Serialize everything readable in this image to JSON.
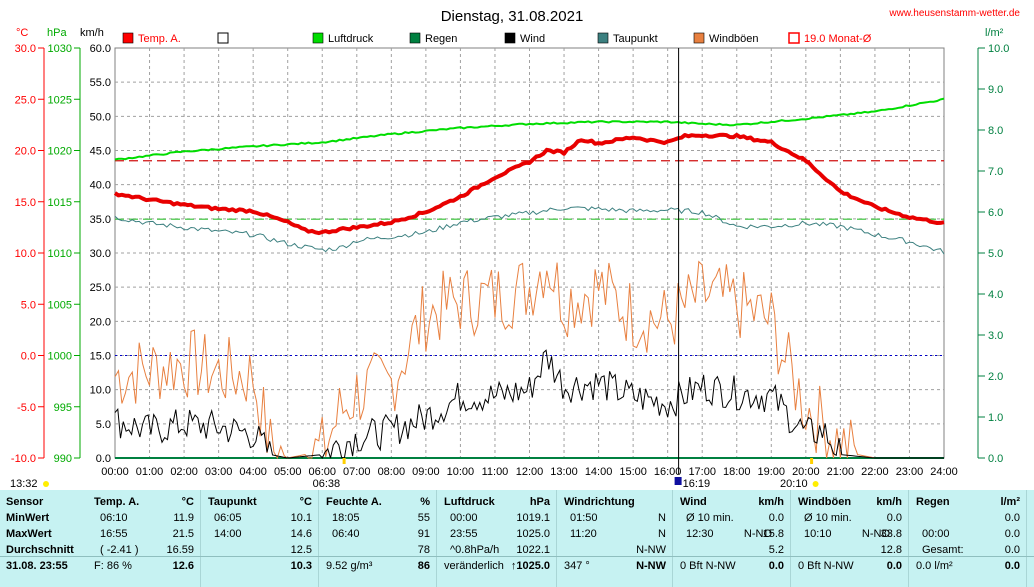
{
  "header": {
    "title": "Dienstag, 31.08.2021",
    "website": "www.heusenstamm-wetter.de",
    "unit_celsius": "°C",
    "unit_hpa": "hPa",
    "unit_kmh": "km/h",
    "unit_rain": "l/m²"
  },
  "legend": [
    {
      "label": "Temp. A.",
      "color": "#ff0000"
    },
    {
      "label": "",
      "color": "#ffffff"
    },
    {
      "label": "Luftdruck",
      "color": "#00dd00"
    },
    {
      "label": "Regen",
      "color": "#008040"
    },
    {
      "label": "Wind",
      "color": "#000000"
    },
    {
      "label": "Taupunkt",
      "color": "#3c8080"
    },
    {
      "label": "Windböen",
      "color": "#e88040"
    },
    {
      "label": "19.0 Monat-Ø",
      "color": "#ff0000"
    }
  ],
  "time_markers": {
    "left": "13:32",
    "sunrise": "06:38",
    "current": "16:19",
    "sunset": "20:10"
  },
  "chart_data": {
    "type": "line",
    "x_ticks": [
      "00:00",
      "01:00",
      "02:00",
      "03:00",
      "04:00",
      "05:00",
      "06:00",
      "07:00",
      "08:00",
      "09:00",
      "10:00",
      "11:00",
      "12:00",
      "13:00",
      "14:00",
      "15:00",
      "16:00",
      "17:00",
      "18:00",
      "19:00",
      "20:00",
      "21:00",
      "22:00",
      "23:00",
      "24:00"
    ],
    "axes": {
      "temp_c": {
        "ticks": [
          "30.0",
          "25.0",
          "20.0",
          "15.0",
          "10.0",
          "5.0",
          "0.0",
          "-5.0",
          "-10.0"
        ],
        "range": [
          -10,
          30
        ]
      },
      "pressure_hpa": {
        "ticks": [
          "1030",
          "1025",
          "1020",
          "1015",
          "1010",
          "1005",
          "1000",
          "995",
          "990"
        ],
        "range": [
          990,
          1030
        ]
      },
      "wind_kmh": {
        "ticks": [
          "60.0",
          "55.0",
          "50.0",
          "45.0",
          "40.0",
          "35.0",
          "30.0",
          "25.0",
          "20.0",
          "15.0",
          "10.0",
          "5.0",
          "0.0"
        ],
        "range": [
          0,
          60
        ]
      },
      "rain_lm2": {
        "ticks": [
          "10.0",
          "9.0",
          "8.0",
          "7.0",
          "6.0",
          "5.0",
          "4.0",
          "3.0",
          "2.0",
          "1.0",
          "0.0"
        ],
        "range": [
          0,
          10
        ]
      }
    },
    "reference_lines": {
      "temp_month_avg": 19.0,
      "dewpoint_ref": 13.3,
      "freeze_line": 0.0
    },
    "series": [
      {
        "name": "Temp. A.",
        "unit": "°C",
        "axis": "temp",
        "x": [
          0,
          1,
          2,
          3,
          4,
          5,
          5.5,
          6,
          6.5,
          7,
          8,
          9,
          10,
          11,
          12,
          12.5,
          13,
          13.5,
          14,
          15,
          15.5,
          16,
          16.5,
          17,
          18,
          19,
          20,
          21,
          22,
          23,
          24
        ],
        "y": [
          15.8,
          15.2,
          14.7,
          14.3,
          14.1,
          13.0,
          12.2,
          12.0,
          12.3,
          12.5,
          13.0,
          14.0,
          15.5,
          17.4,
          18.9,
          20.0,
          19.8,
          21.1,
          20.7,
          21.3,
          21.0,
          20.8,
          21.4,
          21.5,
          21.4,
          20.8,
          19.0,
          16.0,
          14.5,
          13.5,
          12.9
        ]
      },
      {
        "name": "Luftdruck",
        "unit": "hPa",
        "axis": "pressure",
        "x": [
          0,
          2,
          4,
          6,
          8,
          10,
          12,
          14,
          16,
          17,
          18,
          20,
          22,
          23,
          24
        ],
        "y": [
          1019.1,
          1019.9,
          1020.4,
          1020.8,
          1021.6,
          1022.2,
          1022.6,
          1022.8,
          1022.8,
          1022.6,
          1022.5,
          1023.1,
          1023.8,
          1024.4,
          1025.0
        ]
      },
      {
        "name": "Taupunkt",
        "unit": "°C",
        "axis": "temp",
        "x": [
          0,
          1,
          2,
          3,
          4,
          5,
          6,
          6.5,
          7,
          8,
          9,
          10,
          11,
          12,
          13,
          14,
          15,
          16,
          17,
          18,
          19,
          20,
          21,
          22,
          23,
          24
        ],
        "y": [
          13.5,
          12.9,
          12.5,
          12.1,
          11.8,
          10.9,
          10.3,
          10.5,
          11.2,
          11.6,
          12.0,
          13.0,
          13.5,
          13.9,
          14.4,
          14.3,
          14.1,
          14.2,
          14.0,
          12.6,
          12.6,
          12.9,
          12.6,
          11.8,
          11.1,
          10.1
        ]
      },
      {
        "name": "Wind",
        "unit": "km/h",
        "axis": "wind",
        "x": [
          0,
          1,
          2,
          3,
          4,
          4.5,
          5,
          6,
          6.5,
          7,
          8,
          9,
          10,
          11,
          12,
          12.5,
          13,
          14,
          15,
          16,
          17,
          18,
          19,
          20,
          20.5,
          21,
          22,
          24
        ],
        "y": [
          5.5,
          4.0,
          5.0,
          4.5,
          3.5,
          0.5,
          0,
          0.5,
          2.0,
          3.0,
          4.0,
          6.0,
          9.0,
          9.0,
          10.0,
          15.0,
          10.5,
          11.0,
          9.0,
          8.0,
          10.5,
          9.5,
          9.0,
          3.5,
          4.0,
          0.5,
          0,
          0
        ]
      },
      {
        "name": "Windböen",
        "unit": "km/h",
        "axis": "wind",
        "x": [
          0,
          1,
          2,
          3,
          4,
          4.5,
          5,
          6,
          6.5,
          7,
          8,
          8.5,
          9,
          10,
          11,
          12,
          12.5,
          13,
          14,
          15,
          16,
          17,
          18,
          19,
          19.5,
          20,
          20.5,
          21,
          21.5,
          22,
          24
        ],
        "y": [
          12.0,
          13.0,
          14.0,
          12.5,
          12.0,
          1.5,
          0,
          1.0,
          6.5,
          9.5,
          11.0,
          16.5,
          21.0,
          23.0,
          23.5,
          25.0,
          29.0,
          23.0,
          25.0,
          21.0,
          20.0,
          24.0,
          22.5,
          20.0,
          13.0,
          7.5,
          5.0,
          2.0,
          0.5,
          0,
          0
        ]
      },
      {
        "name": "Regen",
        "unit": "l/m²",
        "axis": "rain",
        "x": [
          0,
          24
        ],
        "y": [
          0.0,
          0.0
        ]
      }
    ]
  },
  "stats": {
    "sensor": {
      "header": "Sensor",
      "rows": [
        "MinWert",
        "MaxWert",
        "Durchschnitt"
      ],
      "footer": "31.08. 23:55"
    },
    "temp": {
      "header": "Temp. A.",
      "unit": "°C",
      "rows": [
        [
          "06:10",
          "11.9"
        ],
        [
          "16:55",
          "21.5"
        ],
        [
          "( -2.41 )",
          "16.59"
        ]
      ],
      "footer_left": "F: 86 %",
      "footer_right": "12.6"
    },
    "dew": {
      "header": "Taupunkt",
      "unit": "°C",
      "rows": [
        [
          "06:05",
          "10.1"
        ],
        [
          "14:00",
          "14.6"
        ],
        [
          "",
          "12.5"
        ]
      ],
      "footer_left": "",
      "footer_right": "10.3"
    },
    "hum": {
      "header": "Feuchte A.",
      "unit": "%",
      "rows": [
        [
          "18:05",
          "55"
        ],
        [
          "06:40",
          "91"
        ],
        [
          "",
          "78"
        ]
      ],
      "footer_left": "9.52 g/m³",
      "footer_right": "86"
    },
    "press": {
      "header": "Luftdruck",
      "unit": "hPa",
      "rows": [
        [
          "00:00",
          "1019.1"
        ],
        [
          "23:55",
          "1025.0"
        ],
        [
          "^0.8hPa/h",
          "1022.1"
        ]
      ],
      "footer_left": "veränderlich",
      "footer_right": "↑1025.0"
    },
    "dir": {
      "header": "Windrichtung",
      "unit": "",
      "rows": [
        [
          "01:50",
          "N"
        ],
        [
          "11:20",
          "N"
        ],
        [
          "",
          "N-NW"
        ]
      ],
      "footer_left": "347 °",
      "footer_right": "N-NW"
    },
    "wind": {
      "header": "Wind",
      "unit": "km/h",
      "rows": [
        [
          "Ø 10 min.",
          "",
          "0.0"
        ],
        [
          "12:30",
          "N-NO",
          "15.8"
        ],
        [
          "",
          "",
          "5.2"
        ]
      ],
      "footer_left": "0 Bft N-NW",
      "footer_right": "0.0"
    },
    "gust": {
      "header": "Windböen",
      "unit": "km/h",
      "rows": [
        [
          "Ø 10 min.",
          "",
          "0.0"
        ],
        [
          "10:10",
          "N-NO",
          "33.8"
        ],
        [
          "",
          "",
          "12.8"
        ]
      ],
      "footer_left": "0 Bft N-NW",
      "footer_right": "0.0"
    },
    "rain": {
      "header": "Regen",
      "unit": "l/m²",
      "rows": [
        [
          "",
          "0.0"
        ],
        [
          "00:00",
          "0.0"
        ],
        [
          "Gesamt:",
          "0.0"
        ]
      ],
      "footer_left": "0.0 l/m²",
      "footer_right": "0.0"
    }
  }
}
